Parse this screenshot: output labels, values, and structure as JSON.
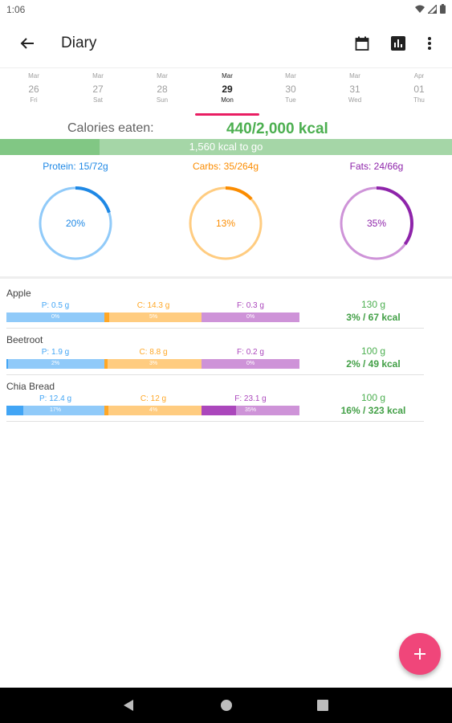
{
  "status_bar": {
    "time": "1:06",
    "icons": [
      "wifi-icon",
      "signal-icon",
      "battery-icon"
    ]
  },
  "app_bar": {
    "title": "Diary",
    "actions": [
      "calendar-icon",
      "bar-chart-icon",
      "more-vert-icon"
    ]
  },
  "dates": [
    {
      "month": "Mar",
      "day": "26",
      "weekday": "Fri",
      "selected": false
    },
    {
      "month": "Mar",
      "day": "27",
      "weekday": "Sat",
      "selected": false
    },
    {
      "month": "Mar",
      "day": "28",
      "weekday": "Sun",
      "selected": false
    },
    {
      "month": "Mar",
      "day": "29",
      "weekday": "Mon",
      "selected": true
    },
    {
      "month": "Mar",
      "day": "30",
      "weekday": "Tue",
      "selected": false
    },
    {
      "month": "Mar",
      "day": "31",
      "weekday": "Wed",
      "selected": false
    },
    {
      "month": "Apr",
      "day": "01",
      "weekday": "Thu",
      "selected": false
    }
  ],
  "calories": {
    "label": "Calories eaten:",
    "value": "440/2,000 kcal",
    "remaining": "1,560 kcal to go",
    "fraction": 0.22
  },
  "macros": [
    {
      "label": "Protein: 15/72g",
      "percent": "20%",
      "fraction": 0.2,
      "color": "#1e88e5",
      "track": "#90caf9"
    },
    {
      "label": "Carbs: 35/264g",
      "percent": "13%",
      "fraction": 0.13,
      "color": "#fb8c00",
      "track": "#ffcc80"
    },
    {
      "label": "Fats: 24/66g",
      "percent": "35%",
      "fraction": 0.35,
      "color": "#8e24aa",
      "track": "#ce93d8"
    }
  ],
  "foods": [
    {
      "name": "Apple",
      "protein": {
        "text": "P: 0.5 g",
        "pct": "0%",
        "fraction": 0.0
      },
      "carbs": {
        "text": "C: 14.3 g",
        "pct": "5%",
        "fraction": 0.05
      },
      "fats": {
        "text": "F: 0.3 g",
        "pct": "0%",
        "fraction": 0.0
      },
      "amount": "130 g",
      "kcal": "3% / 67 kcal"
    },
    {
      "name": "Beetroot",
      "protein": {
        "text": "P: 1.9 g",
        "pct": "2%",
        "fraction": 0.02
      },
      "carbs": {
        "text": "C: 8.8 g",
        "pct": "3%",
        "fraction": 0.03
      },
      "fats": {
        "text": "F: 0.2 g",
        "pct": "0%",
        "fraction": 0.0
      },
      "amount": "100 g",
      "kcal": "2% / 49 kcal"
    },
    {
      "name": "Chia Bread",
      "protein": {
        "text": "P: 12.4 g",
        "pct": "17%",
        "fraction": 0.17
      },
      "carbs": {
        "text": "C: 12 g",
        "pct": "4%",
        "fraction": 0.04
      },
      "fats": {
        "text": "F: 23.1 g",
        "pct": "35%",
        "fraction": 0.35
      },
      "amount": "100 g",
      "kcal": "16% / 323 kcal"
    }
  ],
  "fab_icon": "plus-icon",
  "nav_icons": [
    "back-triangle-icon",
    "home-circle-icon",
    "recents-square-icon"
  ]
}
